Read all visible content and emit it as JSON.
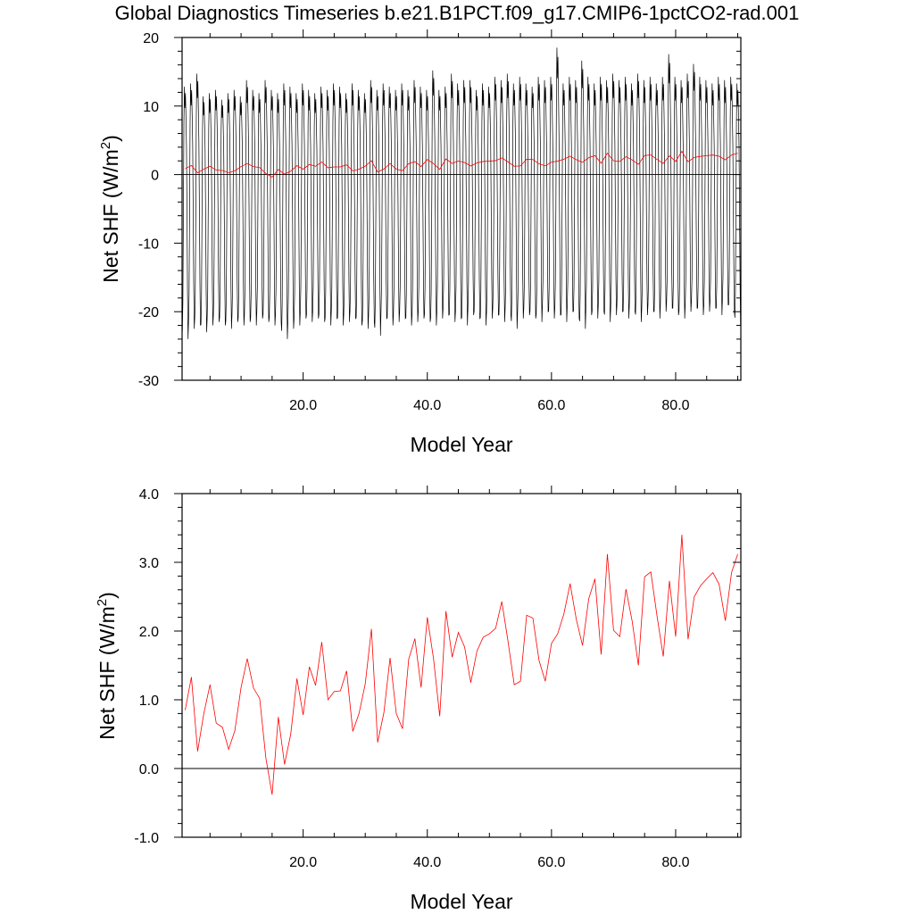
{
  "figure": {
    "title": "Global Diagnostics Timeseries b.e21.B1PCT.f09_g17.CMIP6-1pctCO2-rad.001"
  },
  "colors": {
    "monthly": "#000000",
    "annual": "#ff0000",
    "zero_line": "#000000",
    "frame": "#000000"
  },
  "chart_data": [
    {
      "type": "line",
      "xlabel": "Model Year",
      "ylabel": "Net SHF (W/m²)",
      "ylabel_base": "Net SHF (W/m",
      "ylabel_sup": "2",
      "ylabel_end": ")",
      "xlim": [
        0.5,
        90.5
      ],
      "ylim": [
        -30,
        20
      ],
      "xticks": [
        20,
        40,
        60,
        80
      ],
      "xtick_labels": [
        "20.0",
        "40.0",
        "60.0",
        "80.0"
      ],
      "yticks": [
        -30,
        -20,
        -10,
        0,
        10,
        20
      ],
      "ytick_labels": [
        "-30",
        "-20",
        "-10",
        "0",
        "10",
        "20"
      ],
      "zero_line": true,
      "series": [
        {
          "style": "monthly",
          "summer_max_by_year": [
            13.5,
            14.0,
            15.5,
            12.0,
            12.5,
            13.0,
            11.5,
            12.5,
            13.0,
            12.0,
            14.5,
            13.0,
            12.5,
            14.5,
            13.0,
            12.5,
            14.0,
            13.5,
            12.5,
            14.0,
            13.0,
            12.5,
            13.5,
            13.0,
            14.0,
            13.5,
            12.5,
            14.0,
            13.0,
            12.5,
            14.5,
            13.0,
            14.0,
            13.5,
            13.0,
            14.0,
            13.0,
            14.5,
            13.5,
            13.0,
            16.0,
            13.0,
            13.5,
            15.5,
            14.0,
            14.5,
            14.5,
            13.0,
            14.0,
            13.5,
            15.0,
            14.5,
            15.5,
            14.0,
            15.0,
            14.0,
            13.5,
            15.0,
            14.5,
            15.0,
            19.5,
            14.0,
            15.0,
            14.5,
            17.5,
            15.0,
            14.0,
            15.0,
            14.5,
            15.5,
            14.5,
            15.0,
            14.0,
            15.5,
            14.5,
            15.0,
            14.0,
            15.0,
            18.5,
            15.0,
            14.5,
            15.5,
            17.0,
            15.0,
            14.5,
            14.0,
            15.0,
            14.5,
            15.0,
            14.0
          ],
          "winter_min_by_year": [
            -24.0,
            -22.5,
            -22.0,
            -23.0,
            -22.0,
            -21.5,
            -22.0,
            -22.5,
            -21.5,
            -22.0,
            -21.5,
            -22.0,
            -21.0,
            -21.5,
            -22.0,
            -21.5,
            -24.0,
            -22.5,
            -22.0,
            -21.0,
            -21.5,
            -21.0,
            -21.5,
            -22.0,
            -21.0,
            -22.0,
            -21.5,
            -21.0,
            -22.0,
            -22.5,
            -21.5,
            -23.5,
            -21.0,
            -22.0,
            -21.5,
            -21.0,
            -22.0,
            -21.5,
            -21.0,
            -21.5,
            -22.0,
            -21.0,
            -20.5,
            -21.5,
            -21.0,
            -22.0,
            -20.5,
            -21.0,
            -22.0,
            -21.0,
            -20.5,
            -21.5,
            -20.5,
            -22.5,
            -21.0,
            -20.5,
            -21.0,
            -21.5,
            -20.0,
            -21.0,
            -20.5,
            -21.5,
            -20.0,
            -21.0,
            -22.5,
            -20.5,
            -21.0,
            -20.0,
            -21.5,
            -20.5,
            -20.0,
            -21.0,
            -20.0,
            -21.5,
            -20.5,
            -20.0,
            -21.0,
            -20.0,
            -19.5,
            -20.5,
            -21.0,
            -20.0,
            -19.5,
            -20.5,
            -20.0,
            -19.5,
            -20.5,
            -19.0,
            -20.0,
            -22.0
          ]
        },
        {
          "style": "annual",
          "values": [
            0.85,
            1.33,
            0.25,
            0.8,
            1.22,
            0.66,
            0.6,
            0.28,
            0.55,
            1.18,
            1.6,
            1.17,
            1.02,
            0.15,
            -0.38,
            0.75,
            0.06,
            0.5,
            1.31,
            0.78,
            1.48,
            1.21,
            1.84,
            1.0,
            1.12,
            1.13,
            1.42,
            0.54,
            0.8,
            1.23,
            2.03,
            0.38,
            0.81,
            1.61,
            0.8,
            0.58,
            1.59,
            1.89,
            1.18,
            2.2,
            1.6,
            0.76,
            2.29,
            1.62,
            1.98,
            1.77,
            1.25,
            1.71,
            1.91,
            1.96,
            2.04,
            2.43,
            1.85,
            1.22,
            1.27,
            2.23,
            2.19,
            1.57,
            1.27,
            1.82,
            1.96,
            2.25,
            2.69,
            2.17,
            1.79,
            2.47,
            2.76,
            1.66,
            3.12,
            2.01,
            1.92,
            2.61,
            2.14,
            1.5,
            2.79,
            2.86,
            2.22,
            1.63,
            2.73,
            1.92,
            3.4,
            1.88,
            2.5,
            2.66,
            2.76,
            2.85,
            2.68,
            2.15,
            2.85,
            3.12
          ]
        }
      ]
    },
    {
      "type": "line",
      "xlabel": "Model Year",
      "ylabel": "Net SHF (W/m²)",
      "ylabel_base": "Net SHF (W/m",
      "ylabel_sup": "2",
      "ylabel_end": ")",
      "xlim": [
        0.5,
        90.5
      ],
      "ylim": [
        -1.0,
        4.0
      ],
      "xticks": [
        20,
        40,
        60,
        80
      ],
      "xtick_labels": [
        "20.0",
        "40.0",
        "60.0",
        "80.0"
      ],
      "yticks": [
        -1,
        0,
        1,
        2,
        3,
        4
      ],
      "ytick_labels": [
        "-1.0",
        "0.0",
        "1.0",
        "2.0",
        "3.0",
        "4.0"
      ],
      "zero_line": true,
      "series": [
        {
          "style": "annual",
          "values": [
            0.85,
            1.33,
            0.25,
            0.8,
            1.22,
            0.66,
            0.6,
            0.28,
            0.55,
            1.18,
            1.6,
            1.17,
            1.02,
            0.15,
            -0.38,
            0.75,
            0.06,
            0.5,
            1.31,
            0.78,
            1.48,
            1.21,
            1.84,
            1.0,
            1.12,
            1.13,
            1.42,
            0.54,
            0.8,
            1.23,
            2.03,
            0.38,
            0.81,
            1.61,
            0.8,
            0.58,
            1.59,
            1.89,
            1.18,
            2.2,
            1.6,
            0.76,
            2.29,
            1.62,
            1.98,
            1.77,
            1.25,
            1.71,
            1.91,
            1.96,
            2.04,
            2.43,
            1.85,
            1.22,
            1.27,
            2.23,
            2.19,
            1.57,
            1.27,
            1.82,
            1.96,
            2.25,
            2.69,
            2.17,
            1.79,
            2.47,
            2.76,
            1.66,
            3.12,
            2.01,
            1.92,
            2.61,
            2.14,
            1.5,
            2.79,
            2.86,
            2.22,
            1.63,
            2.73,
            1.92,
            3.4,
            1.88,
            2.5,
            2.66,
            2.76,
            2.85,
            2.68,
            2.15,
            2.85,
            3.12
          ]
        }
      ]
    }
  ]
}
